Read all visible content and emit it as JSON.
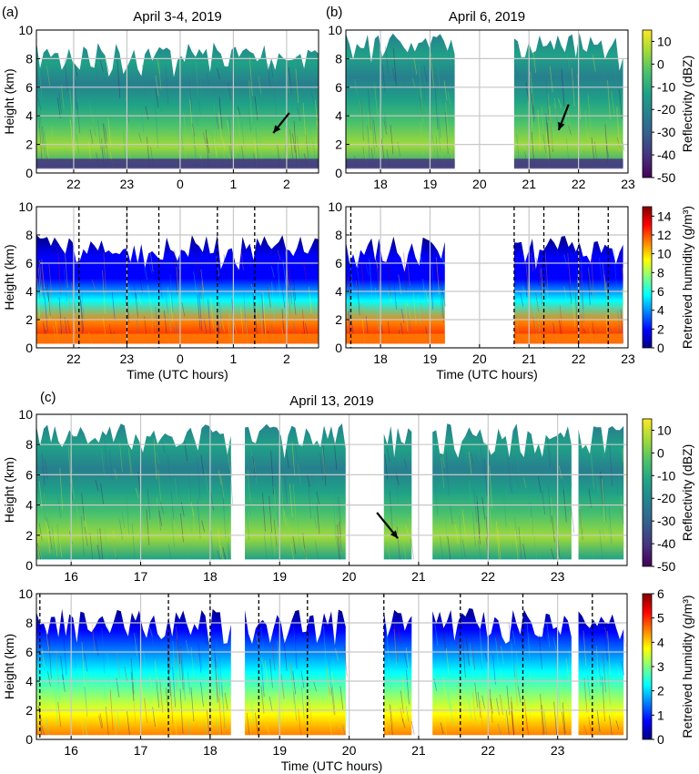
{
  "panel_labels": [
    "(a)",
    "(b)",
    "(c)"
  ],
  "colors": {
    "viridis": [
      "#440154",
      "#46327e",
      "#365c8d",
      "#277f8e",
      "#1fa187",
      "#4ac16d",
      "#a0da39",
      "#fde725"
    ],
    "jet": [
      "#00007f",
      "#0000ff",
      "#0080ff",
      "#00ffff",
      "#80ff80",
      "#ffff00",
      "#ff8000",
      "#ff0000",
      "#7f0000"
    ],
    "dashed_line": "#000000",
    "grid": "#c8c8c8"
  },
  "icons": [
    "arrow-annotation-icon"
  ],
  "chart_data": [
    {
      "id": "a-top",
      "type": "heatmap",
      "title": "April 3-4, 2019",
      "xlabel": "",
      "ylabel": "Height (km)",
      "xlim": [
        21.3,
        26.6
      ],
      "ylim": [
        0,
        10
      ],
      "xticks": [
        22,
        23,
        24,
        25,
        26
      ],
      "xtick_labels": [
        "22",
        "23",
        "0",
        "1",
        "2"
      ],
      "yticks": [
        0,
        2,
        4,
        6,
        8,
        10
      ],
      "colorbar": "viridis",
      "colorbar_label": "Reflectivity (dBZ)",
      "colorbar_range": [
        -50,
        15
      ],
      "colorbar_ticks": [
        -50,
        -40,
        -30,
        -20,
        -10,
        0,
        10
      ],
      "gaps": [],
      "segments": [
        [
          21.3,
          26.6
        ]
      ],
      "top_km": 9.2,
      "low_layer": true,
      "arrows": [
        {
          "from": [
            26.05,
            4.2
          ],
          "to": [
            25.75,
            2.8
          ]
        }
      ],
      "dashed_lines": []
    },
    {
      "id": "a-bottom",
      "type": "heatmap",
      "title": "",
      "xlabel": "Time (UTC hours)",
      "ylabel": "Height (km)",
      "xlim": [
        21.3,
        26.6
      ],
      "ylim": [
        0,
        10
      ],
      "xticks": [
        22,
        23,
        24,
        25,
        26
      ],
      "xtick_labels": [
        "22",
        "23",
        "0",
        "1",
        "2"
      ],
      "yticks": [
        0,
        2,
        4,
        6,
        8,
        10
      ],
      "colorbar": "jet",
      "colorbar_label": "Retreived humidity (g/m³)",
      "colorbar_range": [
        0,
        15
      ],
      "colorbar_ticks": [
        0,
        2,
        4,
        6,
        8,
        10,
        12,
        14
      ],
      "segments": [
        [
          21.3,
          26.6
        ]
      ],
      "top_km": 8.0,
      "low_layer": true,
      "arrows": [],
      "dashed_lines": [
        22.1,
        23.0,
        23.6,
        24.7,
        25.4
      ]
    },
    {
      "id": "b-top",
      "type": "heatmap",
      "title": "April 6, 2019",
      "xlabel": "",
      "ylabel": "",
      "xlim": [
        17.3,
        23.0
      ],
      "ylim": [
        0,
        10
      ],
      "xticks": [
        18,
        19,
        20,
        21,
        22,
        23
      ],
      "xtick_labels": [
        "18",
        "19",
        "20",
        "21",
        "22",
        "23"
      ],
      "yticks": [
        0,
        2,
        4,
        6,
        8,
        10
      ],
      "colorbar": "viridis",
      "colorbar_label": "Reflectivity (dBZ)",
      "colorbar_range": [
        -50,
        15
      ],
      "colorbar_ticks": [
        -50,
        -40,
        -30,
        -20,
        -10,
        0,
        10
      ],
      "segments": [
        [
          17.3,
          19.5
        ],
        [
          20.7,
          22.9
        ]
      ],
      "top_km": 9.8,
      "low_layer": true,
      "arrows": [
        {
          "from": [
            21.8,
            4.8
          ],
          "to": [
            21.6,
            3.0
          ]
        }
      ],
      "dashed_lines": []
    },
    {
      "id": "b-bottom",
      "type": "heatmap",
      "title": "",
      "xlabel": "Time (UTC hours)",
      "ylabel": "",
      "xlim": [
        17.3,
        23.0
      ],
      "ylim": [
        0,
        10
      ],
      "xticks": [
        18,
        19,
        20,
        21,
        22,
        23
      ],
      "xtick_labels": [
        "18",
        "19",
        "20",
        "21",
        "22",
        "23"
      ],
      "yticks": [
        0,
        2,
        4,
        6,
        8,
        10
      ],
      "colorbar": "jet",
      "colorbar_label": "Retreived humidity (g/m³)",
      "colorbar_range": [
        0,
        15
      ],
      "colorbar_ticks": [
        0,
        2,
        4,
        6,
        8,
        10,
        12,
        14
      ],
      "segments": [
        [
          17.3,
          19.3
        ],
        [
          20.7,
          22.9
        ]
      ],
      "top_km": 8.0,
      "low_layer": true,
      "arrows": [],
      "dashed_lines": [
        17.4,
        20.7,
        21.3,
        22.0,
        22.6
      ]
    },
    {
      "id": "c-top",
      "type": "heatmap",
      "title": "April 13, 2019",
      "xlabel": "",
      "ylabel": "Height (km)",
      "xlim": [
        15.5,
        24.0
      ],
      "ylim": [
        0,
        10
      ],
      "xticks": [
        16,
        17,
        18,
        19,
        20,
        21,
        22,
        23
      ],
      "xtick_labels": [
        "16",
        "17",
        "18",
        "19",
        "20",
        "21",
        "22",
        "23"
      ],
      "yticks": [
        0,
        2,
        4,
        6,
        8,
        10
      ],
      "colorbar": "viridis",
      "colorbar_label": "Reflectivity (dBZ)",
      "colorbar_range": [
        -50,
        15
      ],
      "colorbar_ticks": [
        -50,
        -40,
        -30,
        -20,
        -10,
        0,
        10
      ],
      "segments": [
        [
          15.5,
          18.3
        ],
        [
          18.5,
          19.95
        ],
        [
          20.5,
          20.9
        ],
        [
          21.2,
          23.2
        ],
        [
          23.3,
          23.95
        ]
      ],
      "top_km": 9.4,
      "low_layer": false,
      "arrows": [
        {
          "from": [
            20.4,
            3.5
          ],
          "to": [
            20.7,
            1.8
          ]
        }
      ],
      "dashed_lines": []
    },
    {
      "id": "c-bottom",
      "type": "heatmap",
      "title": "",
      "xlabel": "Time (UTC hours)",
      "ylabel": "Height (km)",
      "xlim": [
        15.5,
        24.0
      ],
      "ylim": [
        0,
        10
      ],
      "xticks": [
        16,
        17,
        18,
        19,
        20,
        21,
        22,
        23
      ],
      "xtick_labels": [
        "16",
        "17",
        "18",
        "19",
        "20",
        "21",
        "22",
        "23"
      ],
      "yticks": [
        0,
        2,
        4,
        6,
        8,
        10
      ],
      "colorbar": "jet",
      "colorbar_label": "Retreived humidity (g/m³)",
      "colorbar_range": [
        0,
        6
      ],
      "colorbar_ticks": [
        0,
        1,
        2,
        3,
        4,
        5,
        6
      ],
      "segments": [
        [
          15.5,
          18.3
        ],
        [
          18.5,
          19.95
        ],
        [
          20.5,
          20.9
        ],
        [
          21.2,
          23.2
        ],
        [
          23.3,
          23.95
        ]
      ],
      "top_km": 9.0,
      "low_layer": false,
      "arrows": [],
      "dashed_lines": [
        15.55,
        17.4,
        18.0,
        18.7,
        19.4,
        20.5,
        21.6,
        22.5,
        23.5
      ]
    }
  ]
}
